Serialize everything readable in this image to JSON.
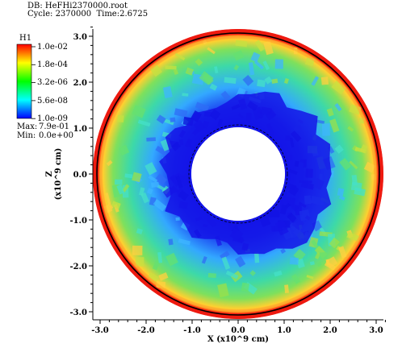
{
  "header": {
    "db_label": "DB: HeFHi2370000.root",
    "cycle_label": "Cycle: 2370000  Time:2.6725"
  },
  "legend": {
    "var_name": "H1",
    "levels": [
      "1.0e-02",
      "1.8e-04",
      "3.2e-06",
      "5.6e-08",
      "1.0e-09"
    ],
    "max_label": "Max:",
    "max_value": "7.9e-01",
    "min_label": "Min:",
    "min_value": "0.0e+00",
    "colors": [
      "#ff0000",
      "#ffff00",
      "#00ff00",
      "#00ffff",
      "#0000ff"
    ]
  },
  "chart_data": {
    "type": "heatmap",
    "title": "",
    "xlabel": "X (x10^9 cm)",
    "ylabel": "Z\n(x10^9 cm)",
    "xlim": [
      -3.2,
      3.2
    ],
    "ylim": [
      -3.2,
      3.2
    ],
    "x_ticks": [
      "-3.0",
      "-2.0",
      "-1.0",
      "0.0",
      "1.0",
      "2.0",
      "3.0"
    ],
    "y_ticks": [
      "3.0",
      "2.0",
      "1.0",
      "0.0",
      "-1.0",
      "-2.0",
      "-3.0"
    ],
    "field": "H1",
    "scale": "log",
    "annulus": {
      "inner_radius": 1.0,
      "outer_radius": 3.2
    },
    "colormap": "hot_desaturated",
    "grid": false
  }
}
